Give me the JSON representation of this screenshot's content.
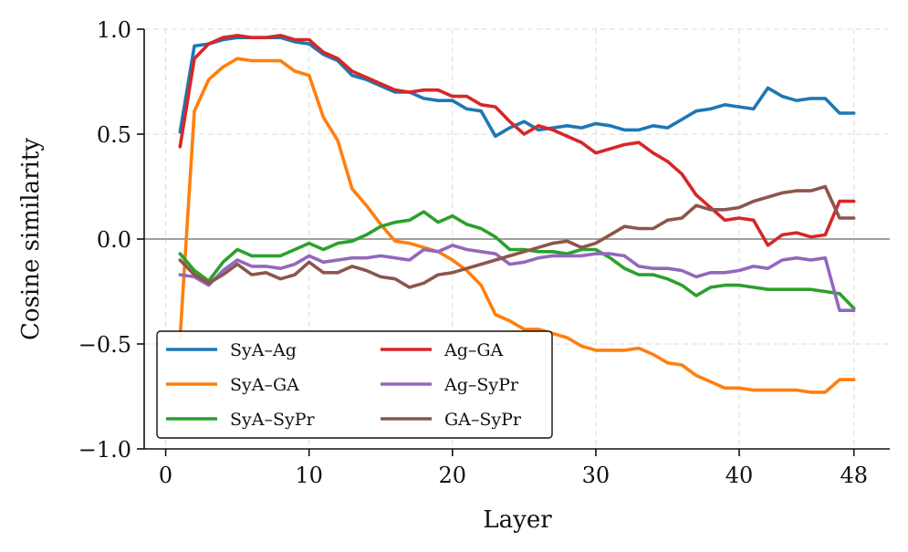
{
  "chart_data": {
    "type": "line",
    "title": "",
    "xlabel": "Layer",
    "ylabel": "Cosine similarity",
    "xlim": [
      -1.5,
      50.5
    ],
    "ylim": [
      -1.0,
      1.0
    ],
    "xticks": [
      0,
      10,
      20,
      30,
      40,
      48
    ],
    "yticks": [
      1.0,
      0.5,
      0.0,
      -0.5,
      -1.0
    ],
    "xtick_labels": [
      "0",
      "10",
      "20",
      "30",
      "40",
      "48"
    ],
    "ytick_labels": [
      "1.0",
      "0.5",
      "0.0",
      "−0.5",
      "−1.0"
    ],
    "grid": true,
    "zero_line": true,
    "legend_position": "lower-left",
    "legend_columns": 2,
    "x": [
      1,
      2,
      3,
      4,
      5,
      6,
      7,
      8,
      9,
      10,
      11,
      12,
      13,
      14,
      15,
      16,
      17,
      18,
      19,
      20,
      21,
      22,
      23,
      24,
      25,
      26,
      27,
      28,
      29,
      30,
      31,
      32,
      33,
      34,
      35,
      36,
      37,
      38,
      39,
      40,
      41,
      42,
      43,
      44,
      45,
      46,
      47,
      48
    ],
    "series": [
      {
        "name": "SyA–Ag",
        "color": "#1f77b4",
        "values": [
          0.51,
          0.92,
          0.93,
          0.95,
          0.96,
          0.96,
          0.96,
          0.96,
          0.94,
          0.93,
          0.88,
          0.85,
          0.78,
          0.76,
          0.73,
          0.7,
          0.7,
          0.67,
          0.66,
          0.66,
          0.62,
          0.61,
          0.49,
          0.53,
          0.56,
          0.52,
          0.53,
          0.54,
          0.53,
          0.55,
          0.54,
          0.52,
          0.52,
          0.54,
          0.53,
          0.57,
          0.61,
          0.62,
          0.64,
          0.63,
          0.62,
          0.72,
          0.68,
          0.66,
          0.67,
          0.67,
          0.6,
          0.6
        ]
      },
      {
        "name": "SyA–GA",
        "color": "#ff7f0e",
        "values": [
          -0.47,
          0.61,
          0.76,
          0.82,
          0.86,
          0.85,
          0.85,
          0.85,
          0.8,
          0.78,
          0.58,
          0.47,
          0.24,
          0.16,
          0.07,
          -0.01,
          -0.02,
          -0.04,
          -0.06,
          -0.1,
          -0.15,
          -0.22,
          -0.36,
          -0.39,
          -0.43,
          -0.43,
          -0.45,
          -0.47,
          -0.51,
          -0.53,
          -0.53,
          -0.53,
          -0.52,
          -0.55,
          -0.59,
          -0.6,
          -0.65,
          -0.68,
          -0.71,
          -0.71,
          -0.72,
          -0.72,
          -0.72,
          -0.72,
          -0.73,
          -0.73,
          -0.67,
          -0.67
        ]
      },
      {
        "name": "SyA–SyPr",
        "color": "#2ca02c",
        "values": [
          -0.07,
          -0.15,
          -0.2,
          -0.11,
          -0.05,
          -0.08,
          -0.08,
          -0.08,
          -0.05,
          -0.02,
          -0.05,
          -0.02,
          -0.01,
          0.02,
          0.06,
          0.08,
          0.09,
          0.13,
          0.08,
          0.11,
          0.07,
          0.05,
          0.01,
          -0.05,
          -0.05,
          -0.06,
          -0.06,
          -0.07,
          -0.05,
          -0.05,
          -0.09,
          -0.14,
          -0.17,
          -0.17,
          -0.19,
          -0.22,
          -0.27,
          -0.23,
          -0.22,
          -0.22,
          -0.23,
          -0.24,
          -0.24,
          -0.24,
          -0.24,
          -0.25,
          -0.26,
          -0.33
        ]
      },
      {
        "name": "Ag–GA",
        "color": "#d62728",
        "values": [
          0.44,
          0.86,
          0.93,
          0.96,
          0.97,
          0.96,
          0.96,
          0.97,
          0.95,
          0.95,
          0.89,
          0.86,
          0.8,
          0.77,
          0.74,
          0.71,
          0.7,
          0.71,
          0.71,
          0.68,
          0.68,
          0.64,
          0.63,
          0.56,
          0.5,
          0.54,
          0.52,
          0.49,
          0.46,
          0.41,
          0.43,
          0.45,
          0.46,
          0.41,
          0.37,
          0.31,
          0.21,
          0.15,
          0.09,
          0.1,
          0.09,
          -0.03,
          0.02,
          0.03,
          0.01,
          0.02,
          0.18,
          0.18
        ]
      },
      {
        "name": "Ag–SyPr",
        "color": "#9467bd",
        "values": [
          -0.17,
          -0.18,
          -0.22,
          -0.15,
          -0.1,
          -0.13,
          -0.13,
          -0.14,
          -0.12,
          -0.08,
          -0.11,
          -0.1,
          -0.09,
          -0.09,
          -0.08,
          -0.09,
          -0.1,
          -0.05,
          -0.06,
          -0.03,
          -0.05,
          -0.06,
          -0.07,
          -0.12,
          -0.11,
          -0.09,
          -0.08,
          -0.08,
          -0.08,
          -0.07,
          -0.07,
          -0.08,
          -0.13,
          -0.14,
          -0.14,
          -0.15,
          -0.18,
          -0.16,
          -0.16,
          -0.15,
          -0.13,
          -0.14,
          -0.1,
          -0.09,
          -0.1,
          -0.09,
          -0.34,
          -0.34
        ]
      },
      {
        "name": "GA–SyPr",
        "color": "#8c564b",
        "values": [
          -0.1,
          -0.17,
          -0.21,
          -0.17,
          -0.12,
          -0.17,
          -0.16,
          -0.19,
          -0.17,
          -0.11,
          -0.16,
          -0.16,
          -0.13,
          -0.15,
          -0.18,
          -0.19,
          -0.23,
          -0.21,
          -0.17,
          -0.16,
          -0.14,
          -0.12,
          -0.1,
          -0.08,
          -0.06,
          -0.04,
          -0.02,
          -0.01,
          -0.04,
          -0.02,
          0.02,
          0.06,
          0.05,
          0.05,
          0.09,
          0.1,
          0.16,
          0.14,
          0.14,
          0.15,
          0.18,
          0.2,
          0.22,
          0.23,
          0.23,
          0.25,
          0.1,
          0.1
        ]
      }
    ]
  }
}
